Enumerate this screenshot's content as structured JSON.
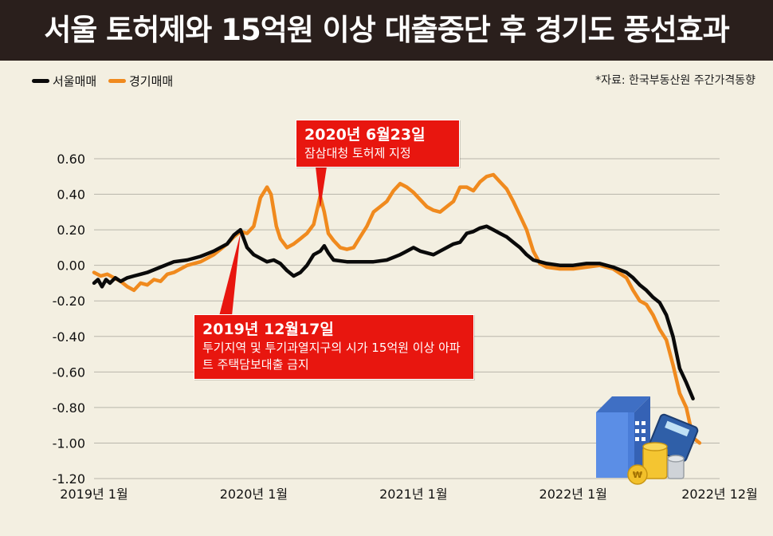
{
  "title": "서울 토허제와 15억원 이상 대출중단 후 경기도 풍선효과",
  "source": "*자료: 한국부동산원 주간가격동향",
  "colors": {
    "seoul": "#0a0a0a",
    "gyeonggi": "#f08a1e",
    "callout": "#e8160f",
    "grid": "#b9b6ab"
  },
  "annotations": [
    {
      "date": "2020년 6월23일",
      "text": "잠삼대청 토허제 지정"
    },
    {
      "date": "2019년 12월17일",
      "text": "투기지역 및 투기과열지구의 시가 15억원 이상 아파트 주택담보대출 금지"
    }
  ],
  "chart_data": {
    "type": "line",
    "title": "서울 토허제와 15억원 이상 대출중단 후 경기도 풍선효과",
    "xlabel": "",
    "ylabel": "",
    "ylim": [
      -1.2,
      0.6
    ],
    "yticks": [
      "0.60",
      "0.40",
      "0.20",
      "0.00",
      "-0.20",
      "-0.40",
      "-0.60",
      "-0.80",
      "-1.00",
      "-1.20"
    ],
    "xticks": [
      {
        "label": "2019년 1월",
        "t": 0
      },
      {
        "label": "2020년 1월",
        "t": 12
      },
      {
        "label": "2021년 1월",
        "t": 24
      },
      {
        "label": "2022년 1월",
        "t": 36
      },
      {
        "label": "2022년 12월",
        "t": 47
      }
    ],
    "legend": "top-left",
    "series": [
      {
        "name": "서울매매",
        "color": "#0a0a0a",
        "points": [
          [
            0,
            -0.1
          ],
          [
            0.3,
            -0.08
          ],
          [
            0.6,
            -0.12
          ],
          [
            0.9,
            -0.08
          ],
          [
            1.2,
            -0.1
          ],
          [
            1.6,
            -0.07
          ],
          [
            2,
            -0.09
          ],
          [
            2.5,
            -0.07
          ],
          [
            3,
            -0.06
          ],
          [
            3.5,
            -0.05
          ],
          [
            4,
            -0.04
          ],
          [
            5,
            -0.01
          ],
          [
            6,
            0.02
          ],
          [
            7,
            0.03
          ],
          [
            8,
            0.05
          ],
          [
            9,
            0.08
          ],
          [
            10,
            0.12
          ],
          [
            10.5,
            0.17
          ],
          [
            11,
            0.2
          ],
          [
            11.5,
            0.1
          ],
          [
            12,
            0.06
          ],
          [
            12.5,
            0.04
          ],
          [
            13,
            0.02
          ],
          [
            13.5,
            0.03
          ],
          [
            14,
            0.01
          ],
          [
            14.5,
            -0.03
          ],
          [
            15,
            -0.06
          ],
          [
            15.5,
            -0.04
          ],
          [
            16,
            0.0
          ],
          [
            16.5,
            0.06
          ],
          [
            17,
            0.08
          ],
          [
            17.3,
            0.11
          ],
          [
            17.6,
            0.07
          ],
          [
            18,
            0.03
          ],
          [
            19,
            0.02
          ],
          [
            20,
            0.02
          ],
          [
            21,
            0.02
          ],
          [
            22,
            0.03
          ],
          [
            23,
            0.06
          ],
          [
            24,
            0.1
          ],
          [
            24.5,
            0.08
          ],
          [
            25,
            0.07
          ],
          [
            25.5,
            0.06
          ],
          [
            26,
            0.08
          ],
          [
            26.5,
            0.1
          ],
          [
            27,
            0.12
          ],
          [
            27.5,
            0.13
          ],
          [
            28,
            0.18
          ],
          [
            28.5,
            0.19
          ],
          [
            29,
            0.21
          ],
          [
            29.5,
            0.22
          ],
          [
            30,
            0.2
          ],
          [
            30.5,
            0.18
          ],
          [
            31,
            0.16
          ],
          [
            31.5,
            0.13
          ],
          [
            32,
            0.1
          ],
          [
            32.5,
            0.06
          ],
          [
            33,
            0.03
          ],
          [
            33.5,
            0.02
          ],
          [
            34,
            0.01
          ],
          [
            35,
            0.0
          ],
          [
            36,
            0.0
          ],
          [
            37,
            0.01
          ],
          [
            38,
            0.01
          ],
          [
            38.5,
            0.0
          ],
          [
            39,
            -0.01
          ],
          [
            40,
            -0.04
          ],
          [
            40.5,
            -0.07
          ],
          [
            41,
            -0.11
          ],
          [
            41.5,
            -0.14
          ],
          [
            42,
            -0.18
          ],
          [
            42.5,
            -0.21
          ],
          [
            43,
            -0.28
          ],
          [
            43.5,
            -0.4
          ],
          [
            44,
            -0.58
          ],
          [
            44.5,
            -0.66
          ],
          [
            45,
            -0.75
          ]
        ]
      },
      {
        "name": "경기매매",
        "color": "#f08a1e",
        "points": [
          [
            0,
            -0.04
          ],
          [
            0.5,
            -0.06
          ],
          [
            1,
            -0.05
          ],
          [
            1.5,
            -0.07
          ],
          [
            2,
            -0.09
          ],
          [
            2.5,
            -0.12
          ],
          [
            3,
            -0.14
          ],
          [
            3.5,
            -0.1
          ],
          [
            4,
            -0.11
          ],
          [
            4.5,
            -0.08
          ],
          [
            5,
            -0.09
          ],
          [
            5.5,
            -0.05
          ],
          [
            6,
            -0.04
          ],
          [
            7,
            0.0
          ],
          [
            8,
            0.02
          ],
          [
            9,
            0.06
          ],
          [
            10,
            0.12
          ],
          [
            10.5,
            0.16
          ],
          [
            11,
            0.19
          ],
          [
            11.5,
            0.18
          ],
          [
            12,
            0.22
          ],
          [
            12.5,
            0.38
          ],
          [
            13,
            0.44
          ],
          [
            13.3,
            0.4
          ],
          [
            13.7,
            0.22
          ],
          [
            14,
            0.15
          ],
          [
            14.5,
            0.1
          ],
          [
            15,
            0.12
          ],
          [
            15.5,
            0.15
          ],
          [
            16,
            0.18
          ],
          [
            16.5,
            0.23
          ],
          [
            17,
            0.39
          ],
          [
            17.3,
            0.3
          ],
          [
            17.6,
            0.18
          ],
          [
            18,
            0.14
          ],
          [
            18.5,
            0.1
          ],
          [
            19,
            0.09
          ],
          [
            19.5,
            0.1
          ],
          [
            20,
            0.16
          ],
          [
            20.5,
            0.22
          ],
          [
            21,
            0.3
          ],
          [
            21.5,
            0.33
          ],
          [
            22,
            0.36
          ],
          [
            22.5,
            0.42
          ],
          [
            23,
            0.46
          ],
          [
            23.5,
            0.44
          ],
          [
            24,
            0.41
          ],
          [
            24.5,
            0.37
          ],
          [
            25,
            0.33
          ],
          [
            25.5,
            0.31
          ],
          [
            26,
            0.3
          ],
          [
            26.5,
            0.33
          ],
          [
            27,
            0.36
          ],
          [
            27.5,
            0.44
          ],
          [
            28,
            0.44
          ],
          [
            28.5,
            0.42
          ],
          [
            29,
            0.47
          ],
          [
            29.5,
            0.5
          ],
          [
            30,
            0.51
          ],
          [
            30.5,
            0.47
          ],
          [
            31,
            0.43
          ],
          [
            31.5,
            0.36
          ],
          [
            32,
            0.28
          ],
          [
            32.5,
            0.2
          ],
          [
            33,
            0.08
          ],
          [
            33.5,
            0.01
          ],
          [
            34,
            -0.01
          ],
          [
            35,
            -0.02
          ],
          [
            36,
            -0.02
          ],
          [
            37,
            -0.01
          ],
          [
            38,
            0.0
          ],
          [
            38.5,
            -0.01
          ],
          [
            39,
            -0.02
          ],
          [
            40,
            -0.07
          ],
          [
            40.5,
            -0.14
          ],
          [
            41,
            -0.2
          ],
          [
            41.5,
            -0.22
          ],
          [
            42,
            -0.28
          ],
          [
            42.5,
            -0.36
          ],
          [
            43,
            -0.42
          ],
          [
            43.5,
            -0.56
          ],
          [
            44,
            -0.72
          ],
          [
            44.5,
            -0.8
          ],
          [
            45,
            -0.97
          ],
          [
            45.5,
            -1.0
          ]
        ]
      }
    ]
  }
}
